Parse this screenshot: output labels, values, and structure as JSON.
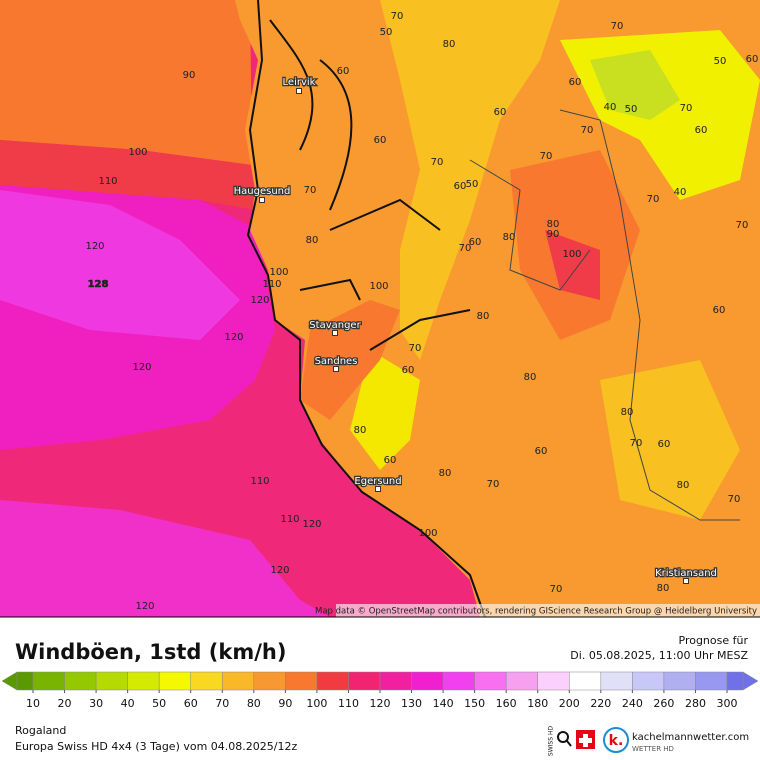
{
  "map": {
    "cities": [
      "Leirvik",
      "Haugesund",
      "Stavanger",
      "Sandnes",
      "Egersund",
      "Kristiansand"
    ],
    "contour_labels": [
      90,
      100,
      110,
      120,
      128,
      120,
      120,
      120,
      110,
      110,
      120,
      120,
      120,
      100,
      80,
      60,
      80,
      70,
      70,
      60,
      80,
      80,
      80,
      90,
      100,
      70,
      60,
      70,
      80,
      60,
      60,
      80,
      70,
      50,
      60,
      60,
      40,
      50,
      70,
      70,
      70,
      70,
      60,
      50,
      70,
      40,
      70,
      60,
      80,
      70,
      60,
      80,
      70,
      60,
      80,
      70,
      50,
      60,
      60,
      80,
      70,
      100,
      110,
      100
    ],
    "attribution": "Map data © OpenStreetMap contributors, rendering GIScience Research Group @ Heidelberg University"
  },
  "legend": {
    "title": "Windböen, 1std (km/h)",
    "forecast_label": "Prognose für",
    "forecast_time": "Di. 05.08.2025, 11:00 Uhr MESZ",
    "scale": {
      "ticks": [
        10,
        20,
        30,
        40,
        50,
        60,
        70,
        80,
        90,
        100,
        110,
        120,
        130,
        140,
        150,
        160,
        180,
        200,
        220,
        240,
        260,
        280,
        300
      ],
      "colors": [
        "#5a9a00",
        "#78b400",
        "#96c800",
        "#b4da00",
        "#d4ea00",
        "#f4f800",
        "#f8d820",
        "#f8b828",
        "#f89830",
        "#f87830",
        "#f03c40",
        "#f02470",
        "#f020a0",
        "#f020d0",
        "#f040f0",
        "#f870f0",
        "#f8a0f0",
        "#fcd0fc",
        "#ffffff",
        "#e0e0f8",
        "#c8c8f8",
        "#b0b0f0",
        "#9898f0",
        "#7070e8"
      ]
    }
  },
  "footer": {
    "region": "Rogaland",
    "model": "Europa Swiss HD 4x4 (3 Tage) vom  04.08.2025/12z",
    "badge": "SWISS HD",
    "brand": "kachelmannwetter.com",
    "brand_sub": "WETTER HD",
    "logo_letter": "k."
  }
}
